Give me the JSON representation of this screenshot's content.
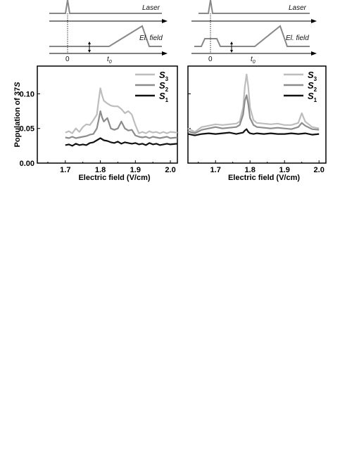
{
  "timing": {
    "laser_label": "Laser",
    "field_label": "El. field",
    "zero_label": "0",
    "t0_label": "t",
    "t0_sub": "0"
  },
  "ylabel": {
    "prefix": "Population of ",
    "state": "37",
    "italic": "S"
  },
  "chart_data": [
    {
      "type": "line",
      "xlabel": "Electric field (V/cm)",
      "ylabel": "Population of 37S",
      "xlim": [
        1.62,
        2.02
      ],
      "ylim": [
        0,
        0.14
      ],
      "xticks": [
        "1.7",
        "1.8",
        "1.9",
        "2.0"
      ],
      "yticks": [
        "0.00",
        "0.05",
        "0.10"
      ],
      "legend_position": "top-right",
      "series": [
        {
          "name": "S3",
          "color": "#bdbdbd",
          "x": [
            1.7,
            1.71,
            1.72,
            1.73,
            1.74,
            1.75,
            1.76,
            1.77,
            1.78,
            1.79,
            1.795,
            1.8,
            1.805,
            1.81,
            1.82,
            1.83,
            1.84,
            1.85,
            1.86,
            1.87,
            1.88,
            1.89,
            1.9,
            1.91,
            1.92,
            1.93,
            1.94,
            1.95,
            1.96,
            1.97,
            1.98,
            1.99,
            2.0,
            2.02
          ],
          "y": [
            0.044,
            0.046,
            0.043,
            0.05,
            0.045,
            0.052,
            0.056,
            0.055,
            0.062,
            0.07,
            0.09,
            0.108,
            0.098,
            0.09,
            0.086,
            0.083,
            0.082,
            0.082,
            0.078,
            0.072,
            0.075,
            0.07,
            0.055,
            0.043,
            0.045,
            0.043,
            0.046,
            0.044,
            0.045,
            0.043,
            0.045,
            0.043,
            0.045,
            0.044
          ]
        },
        {
          "name": "S2",
          "color": "#8c8c8c",
          "x": [
            1.7,
            1.71,
            1.72,
            1.73,
            1.74,
            1.75,
            1.76,
            1.77,
            1.78,
            1.79,
            1.795,
            1.8,
            1.805,
            1.81,
            1.82,
            1.83,
            1.84,
            1.85,
            1.86,
            1.87,
            1.88,
            1.89,
            1.9,
            1.91,
            1.92,
            1.93,
            1.94,
            1.95,
            1.96,
            1.97,
            1.98,
            1.99,
            2.0,
            2.02
          ],
          "y": [
            0.037,
            0.036,
            0.038,
            0.036,
            0.037,
            0.038,
            0.039,
            0.041,
            0.042,
            0.05,
            0.062,
            0.075,
            0.066,
            0.06,
            0.065,
            0.05,
            0.048,
            0.05,
            0.06,
            0.05,
            0.047,
            0.048,
            0.04,
            0.038,
            0.037,
            0.038,
            0.036,
            0.038,
            0.037,
            0.036,
            0.037,
            0.038,
            0.036,
            0.037
          ]
        },
        {
          "name": "S1",
          "color": "#111111",
          "x": [
            1.7,
            1.71,
            1.72,
            1.73,
            1.74,
            1.75,
            1.76,
            1.77,
            1.78,
            1.79,
            1.8,
            1.81,
            1.82,
            1.83,
            1.84,
            1.85,
            1.86,
            1.87,
            1.88,
            1.89,
            1.9,
            1.91,
            1.92,
            1.93,
            1.94,
            1.95,
            1.96,
            1.97,
            1.98,
            1.99,
            2.0,
            2.02
          ],
          "y": [
            0.026,
            0.027,
            0.025,
            0.028,
            0.026,
            0.027,
            0.026,
            0.029,
            0.03,
            0.033,
            0.036,
            0.033,
            0.032,
            0.03,
            0.029,
            0.031,
            0.028,
            0.03,
            0.029,
            0.028,
            0.029,
            0.027,
            0.028,
            0.026,
            0.029,
            0.027,
            0.028,
            0.026,
            0.027,
            0.028,
            0.027,
            0.028
          ]
        }
      ]
    },
    {
      "type": "line",
      "xlabel": "Electric field (V/cm)",
      "xlim": [
        1.62,
        2.02
      ],
      "ylim": [
        0,
        0.14
      ],
      "xticks": [
        "1.7",
        "1.8",
        "1.9",
        "2.0"
      ],
      "legend_position": "top-right",
      "series": [
        {
          "name": "S3",
          "color": "#bdbdbd",
          "x": [
            1.62,
            1.64,
            1.66,
            1.68,
            1.7,
            1.72,
            1.74,
            1.76,
            1.77,
            1.78,
            1.785,
            1.79,
            1.795,
            1.8,
            1.81,
            1.82,
            1.84,
            1.86,
            1.88,
            1.9,
            1.92,
            1.94,
            1.95,
            1.96,
            1.98,
            2.0
          ],
          "y": [
            0.05,
            0.045,
            0.052,
            0.054,
            0.056,
            0.055,
            0.056,
            0.057,
            0.06,
            0.08,
            0.11,
            0.128,
            0.11,
            0.08,
            0.062,
            0.058,
            0.057,
            0.056,
            0.057,
            0.055,
            0.055,
            0.058,
            0.072,
            0.06,
            0.052,
            0.05
          ]
        },
        {
          "name": "S2",
          "color": "#8c8c8c",
          "x": [
            1.62,
            1.64,
            1.66,
            1.68,
            1.7,
            1.72,
            1.74,
            1.76,
            1.77,
            1.78,
            1.785,
            1.79,
            1.795,
            1.8,
            1.81,
            1.82,
            1.84,
            1.86,
            1.88,
            1.9,
            1.92,
            1.94,
            1.95,
            1.96,
            1.98,
            2.0
          ],
          "y": [
            0.046,
            0.043,
            0.048,
            0.05,
            0.052,
            0.05,
            0.051,
            0.052,
            0.055,
            0.07,
            0.09,
            0.098,
            0.085,
            0.065,
            0.055,
            0.052,
            0.051,
            0.05,
            0.051,
            0.05,
            0.049,
            0.052,
            0.058,
            0.054,
            0.049,
            0.048
          ]
        },
        {
          "name": "S1",
          "color": "#111111",
          "x": [
            1.62,
            1.64,
            1.66,
            1.68,
            1.7,
            1.72,
            1.74,
            1.76,
            1.77,
            1.78,
            1.785,
            1.79,
            1.795,
            1.8,
            1.81,
            1.82,
            1.84,
            1.86,
            1.88,
            1.9,
            1.92,
            1.94,
            1.96,
            1.98,
            2.0
          ],
          "y": [
            0.042,
            0.04,
            0.042,
            0.043,
            0.042,
            0.043,
            0.044,
            0.042,
            0.043,
            0.044,
            0.047,
            0.049,
            0.045,
            0.043,
            0.042,
            0.043,
            0.042,
            0.043,
            0.042,
            0.042,
            0.043,
            0.042,
            0.043,
            0.041,
            0.042
          ]
        }
      ]
    }
  ]
}
